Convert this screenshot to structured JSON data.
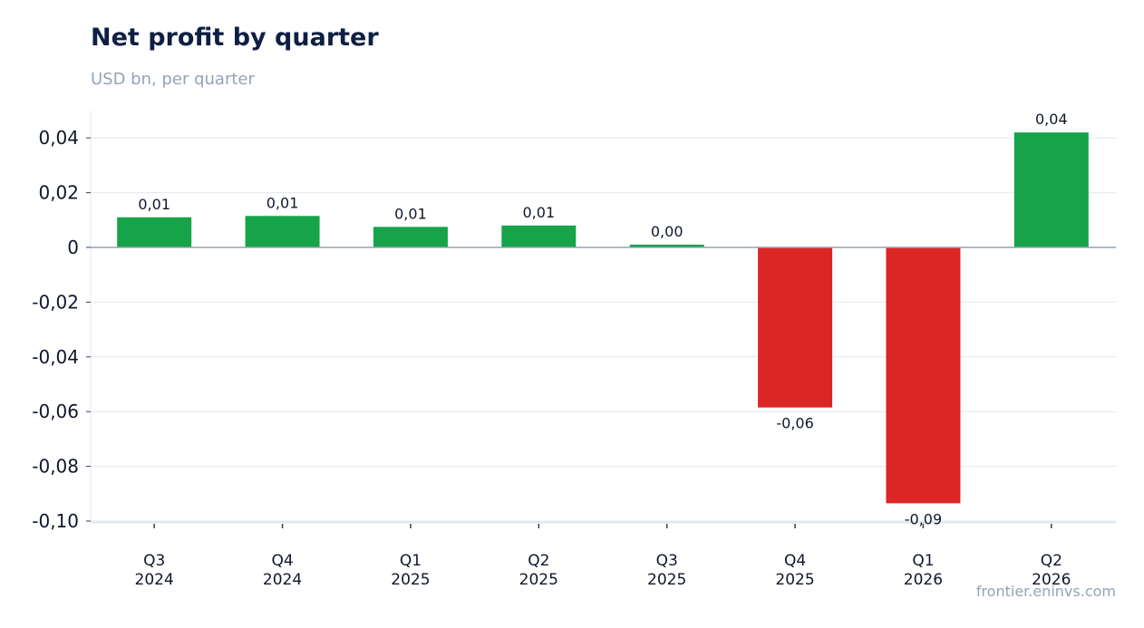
{
  "header": {
    "title": "Net profit by quarter",
    "subtitle": "USD bn, per quarter"
  },
  "footer": {
    "source": "frontier.eninvs.com"
  },
  "colors": {
    "positive": "#16a34a",
    "negative": "#dc2626",
    "grid": "#e2e8f0",
    "zero_line": "#94a3b8",
    "tick_text": "#0f172a"
  },
  "chart_data": {
    "type": "bar",
    "title": "Net profit by quarter",
    "subtitle": "USD bn, per quarter",
    "xlabel": "",
    "ylabel": "",
    "categories": [
      [
        "Q3",
        "2024"
      ],
      [
        "Q4",
        "2024"
      ],
      [
        "Q1",
        "2025"
      ],
      [
        "Q2",
        "2025"
      ],
      [
        "Q3",
        "2025"
      ],
      [
        "Q4",
        "2025"
      ],
      [
        "Q1",
        "2026"
      ],
      [
        "Q2",
        "2026"
      ]
    ],
    "values": [
      0.011,
      0.0115,
      0.0075,
      0.008,
      0.001,
      -0.0585,
      -0.0935,
      0.042
    ],
    "data_labels": [
      "0,01",
      "0,01",
      "0,01",
      "0,01",
      "0,00",
      "-0,06",
      "-0,09",
      "0,04"
    ],
    "ylim": [
      -0.1,
      0.05
    ],
    "yticks": [
      0.04,
      0.02,
      0,
      -0.02,
      -0.04,
      -0.06,
      -0.08,
      -0.1
    ],
    "ytick_labels": [
      "0,04",
      "0,02",
      "0",
      "-0,02",
      "-0,04",
      "-0,06",
      "-0,08",
      "-0,10"
    ],
    "grid": true,
    "legend": "none"
  }
}
